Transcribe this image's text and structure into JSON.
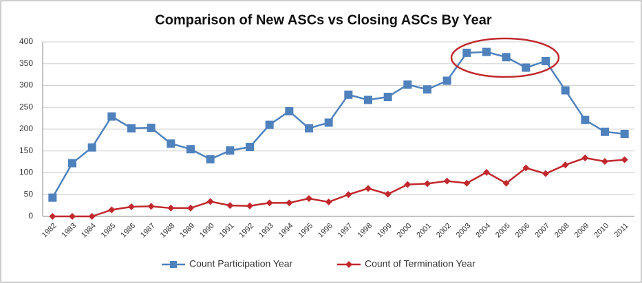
{
  "chart_data": {
    "type": "line",
    "title": "Comparison of New ASCs vs Closing ASCs By Year",
    "categories": [
      "1982",
      "1983",
      "1984",
      "1985",
      "1986",
      "1987",
      "1988",
      "1989",
      "1990",
      "1991",
      "1992",
      "1993",
      "1994",
      "1995",
      "1996",
      "1997",
      "1998",
      "1999",
      "2000",
      "2001",
      "2002",
      "2003",
      "2004",
      "2005",
      "2006",
      "2007",
      "2008",
      "2009",
      "2010",
      "2011"
    ],
    "series": [
      {
        "name": "Count Participation Year",
        "color": "#4f81bd",
        "marker": "square",
        "values": [
          43,
          122,
          158,
          229,
          202,
          203,
          167,
          154,
          131,
          151,
          159,
          210,
          241,
          202,
          215,
          279,
          267,
          274,
          302,
          291,
          311,
          375,
          377,
          365,
          341,
          356,
          289,
          221,
          194,
          189
        ]
      },
      {
        "name": "Count of Termination Year",
        "color": "#c0282d",
        "marker": "diamond",
        "values": [
          0,
          0,
          0,
          15,
          22,
          23,
          19,
          19,
          34,
          25,
          24,
          31,
          31,
          41,
          33,
          50,
          64,
          51,
          73,
          75,
          81,
          76,
          101,
          76,
          111,
          98,
          118,
          134,
          126,
          130
        ]
      }
    ],
    "ylim": [
      0,
      400
    ],
    "yticks": [
      0,
      50,
      100,
      150,
      200,
      250,
      300,
      350,
      400
    ],
    "grid": true,
    "legend": "bottom"
  }
}
